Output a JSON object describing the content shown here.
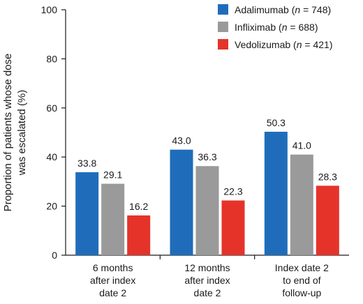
{
  "chart_data": {
    "type": "bar",
    "categories": [
      [
        "6 months",
        "after index",
        "date 2"
      ],
      [
        "12 months",
        "after index",
        "date 2"
      ],
      [
        "Index date 2",
        "to end of",
        "follow-up"
      ]
    ],
    "series": [
      {
        "name": "Adalimumab",
        "n_text": "n",
        "n_value": " = 748",
        "color": "#1f6dba",
        "values": [
          33.8,
          43.0,
          50.3
        ]
      },
      {
        "name": "Infliximab",
        "n_text": "n",
        "n_value": " = 688",
        "color": "#9a9a9a",
        "values": [
          29.1,
          36.3,
          41.0
        ]
      },
      {
        "name": "Vedolizumab",
        "n_text": "n",
        "n_value": " = 421",
        "color": "#e5332a",
        "values": [
          16.2,
          22.3,
          28.3
        ]
      }
    ],
    "ylabel_lines": [
      "Proportion of patients whose dose",
      "was escalated (%)"
    ],
    "ylim": [
      0,
      100
    ],
    "yticks": [
      0,
      20,
      40,
      60,
      80,
      100
    ],
    "legend_position": "top-right",
    "grid": false
  }
}
